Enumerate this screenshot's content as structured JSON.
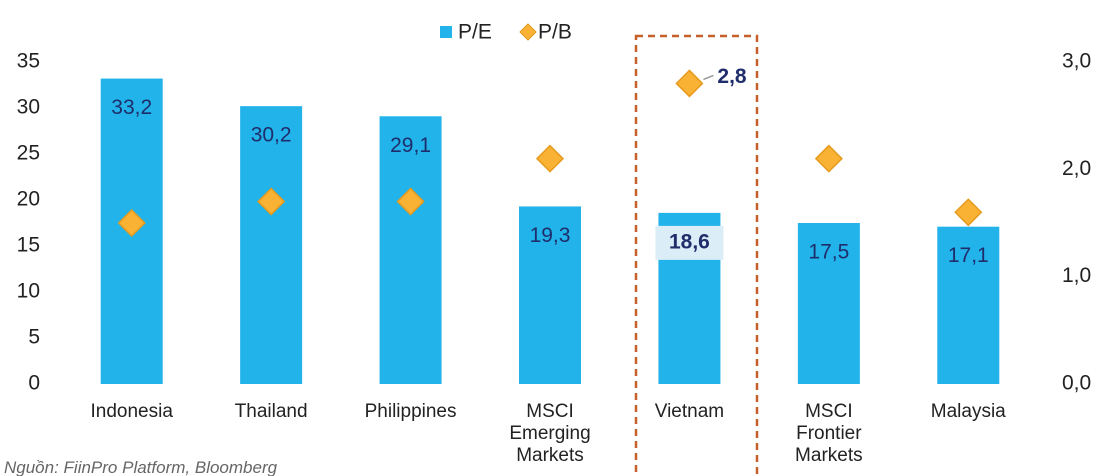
{
  "chart_data": {
    "type": "bar",
    "categories": [
      "Indonesia",
      "Thailand",
      "Philippines",
      "MSCI Emerging Markets",
      "Vietnam",
      "MSCI Frontier Markets",
      "Malaysia"
    ],
    "series": [
      {
        "name": "P/E",
        "type": "bar",
        "color": "#21b3ea",
        "values": [
          33.2,
          30.2,
          29.1,
          19.3,
          18.6,
          17.5,
          17.1
        ],
        "value_labels": [
          "33,2",
          "30,2",
          "29,1",
          "19,3",
          "18,6",
          "17,5",
          "17,1"
        ]
      },
      {
        "name": "P/B",
        "type": "scatter",
        "axis": "y2",
        "color": "#f9b233",
        "values": [
          1.5,
          1.7,
          1.7,
          2.1,
          2.8,
          2.1,
          1.6
        ],
        "value_labels": [
          null,
          null,
          null,
          null,
          "2,8",
          null,
          null
        ]
      }
    ],
    "ylim": [
      0,
      35
    ],
    "yticks": [
      0,
      5,
      10,
      15,
      20,
      25,
      30,
      35
    ],
    "y2lim": [
      0,
      3
    ],
    "y2ticks": [
      {
        "value": 0,
        "label": "0,0"
      },
      {
        "value": 1,
        "label": "1,0"
      },
      {
        "value": 2,
        "label": "2,0"
      },
      {
        "value": 3,
        "label": "3,0"
      }
    ],
    "highlight": "Vietnam",
    "legend": "top",
    "source": "Nguồn: FiinPro Platform, Bloomberg"
  }
}
